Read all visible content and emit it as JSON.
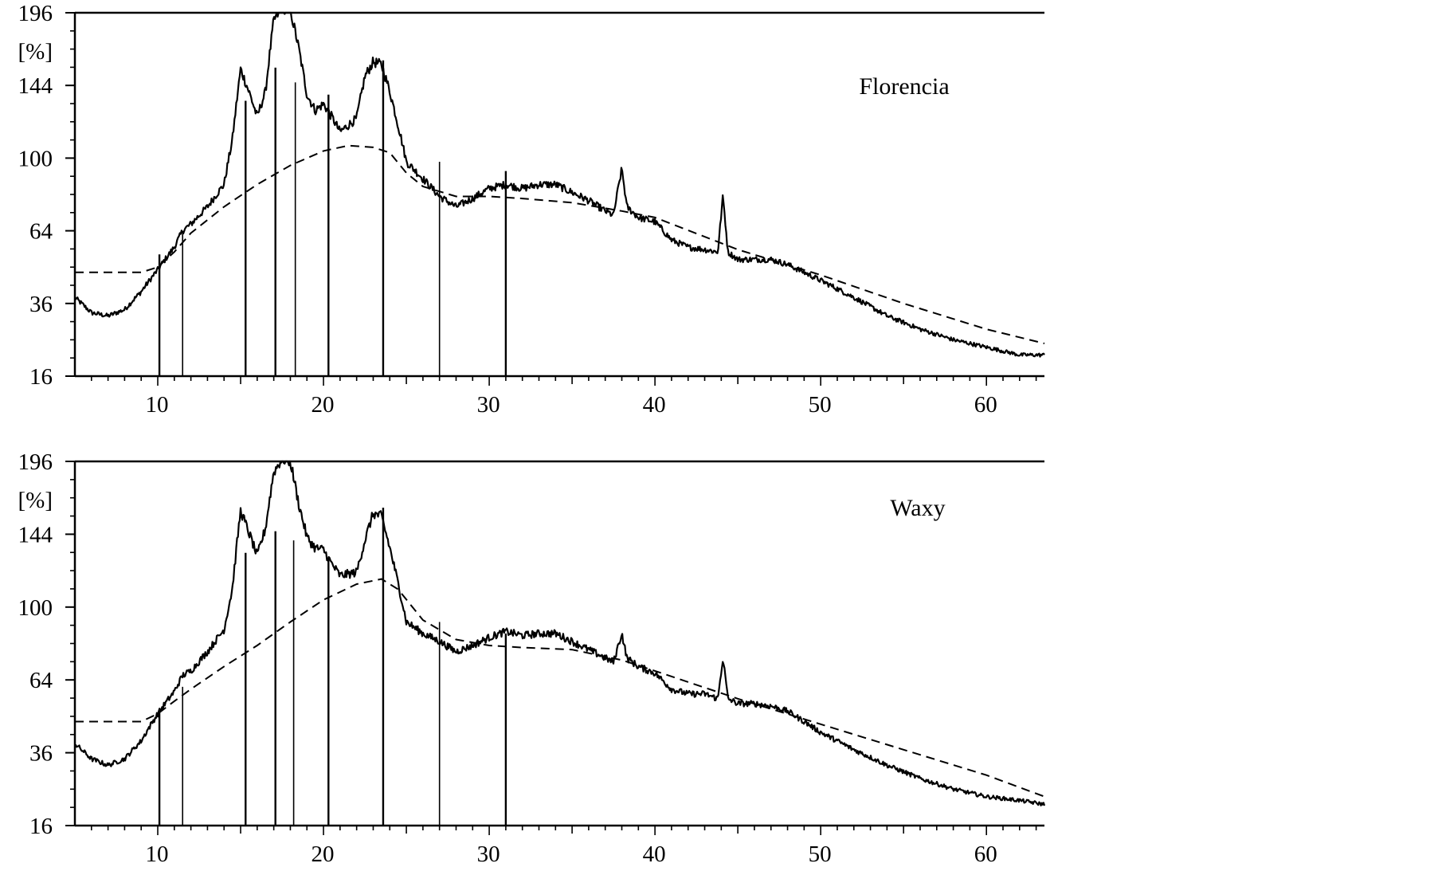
{
  "chart_data": [
    {
      "type": "line",
      "title": "Florencia",
      "ylabel": "[%]",
      "xlim": [
        5,
        63.5
      ],
      "ylim": [
        16,
        196
      ],
      "x_ticks": [
        10,
        20,
        30,
        40,
        50,
        60
      ],
      "y_ticks": [
        16,
        36,
        64,
        100,
        144,
        196
      ],
      "y_scale": "sqrt",
      "grid": false,
      "series": [
        {
          "line_style": "solid",
          "x": [
            5,
            6,
            7,
            8,
            9,
            10,
            11,
            11.5,
            12,
            13,
            14,
            14.5,
            15,
            15.5,
            16,
            16.5,
            17,
            17.5,
            18,
            18.5,
            19,
            19.5,
            20,
            20.5,
            21,
            22,
            22.5,
            23,
            23.5,
            24,
            25,
            26,
            27,
            28,
            29,
            30,
            31,
            32,
            33,
            34,
            35,
            36,
            37,
            37.5,
            38,
            38.3,
            39,
            40,
            41,
            42,
            43,
            43.8,
            44.1,
            44.4,
            45,
            46,
            47,
            48,
            49,
            50,
            52,
            54,
            56,
            58,
            60,
            62,
            63.5
          ],
          "y": [
            38,
            33,
            32,
            34,
            40,
            48,
            57,
            64,
            67,
            75,
            86,
            110,
            155,
            140,
            124,
            140,
            190,
            200,
            198,
            170,
            138,
            128,
            132,
            124,
            115,
            123,
            150,
            160,
            158,
            140,
            98,
            89,
            80,
            75,
            79,
            84,
            86,
            84,
            86,
            86,
            82,
            78,
            73,
            71,
            94,
            75,
            70,
            68,
            60,
            57,
            56,
            55,
            80,
            55,
            52,
            52,
            52,
            50,
            47,
            44,
            38,
            32,
            28,
            25,
            23,
            21,
            21
          ]
        },
        {
          "line_style": "dashed",
          "x": [
            5,
            7,
            9,
            10,
            11,
            12,
            14,
            16,
            18,
            20,
            21.5,
            23,
            24,
            25,
            26,
            28,
            30,
            32,
            35,
            38,
            40,
            45,
            50,
            55,
            60,
            63.5
          ],
          "y": [
            47,
            47,
            47,
            49,
            55,
            63,
            75,
            86,
            96,
            104,
            107,
            106,
            103,
            92,
            85,
            80,
            80,
            79,
            77,
            73,
            70,
            56,
            46,
            36,
            28,
            24
          ]
        }
      ],
      "stick_x": [
        10.1,
        11.5,
        15.3,
        17.1,
        18.3,
        20.3,
        23.6,
        27.0,
        31.0
      ],
      "stick_y": [
        54,
        64,
        134,
        156,
        146,
        138,
        161,
        98,
        93
      ]
    },
    {
      "type": "line",
      "title": "Waxy",
      "ylabel": "[%]",
      "xlim": [
        5,
        63.5
      ],
      "ylim": [
        16,
        196
      ],
      "x_ticks": [
        10,
        20,
        30,
        40,
        50,
        60
      ],
      "y_ticks": [
        16,
        36,
        64,
        100,
        144,
        196
      ],
      "y_scale": "sqrt",
      "grid": false,
      "series": [
        {
          "line_style": "solid",
          "x": [
            5,
            6,
            7,
            8,
            9,
            10,
            11,
            11.5,
            12,
            13,
            14,
            14.5,
            15,
            15.5,
            16,
            16.5,
            17,
            17.5,
            18,
            18.5,
            19,
            19.5,
            20,
            20.5,
            21,
            22,
            22.5,
            23,
            23.5,
            24,
            25,
            26,
            27,
            28,
            29,
            30,
            31,
            32,
            33,
            34,
            35,
            36,
            37,
            37.5,
            38,
            38.3,
            39,
            40,
            41,
            42,
            43,
            43.8,
            44.1,
            44.4,
            45,
            46,
            47,
            48,
            49,
            50,
            52,
            54,
            56,
            58,
            60,
            62,
            63.5
          ],
          "y": [
            39,
            34,
            32,
            34,
            40,
            50,
            59,
            66,
            68,
            77,
            88,
            110,
            160,
            145,
            130,
            148,
            188,
            198,
            196,
            165,
            142,
            135,
            134,
            125,
            118,
            120,
            140,
            158,
            156,
            135,
            92,
            86,
            82,
            77,
            80,
            84,
            87,
            85,
            86,
            86,
            82,
            78,
            74,
            72,
            86,
            74,
            70,
            67,
            60,
            58,
            58,
            56,
            74,
            56,
            54,
            54,
            53,
            51,
            47,
            43,
            37,
            32,
            28,
            25,
            23,
            22,
            21
          ]
        },
        {
          "line_style": "dashed",
          "x": [
            5,
            7,
            9,
            10,
            11,
            12,
            14,
            16,
            18,
            20,
            22,
            23.5,
            24.5,
            26,
            28,
            30,
            32,
            35,
            38,
            40,
            45,
            50,
            55,
            60,
            63.5
          ],
          "y": [
            47,
            47,
            47,
            50,
            55,
            60,
            70,
            80,
            92,
            104,
            113,
            116,
            110,
            93,
            83,
            80,
            79,
            78,
            73,
            68,
            56,
            46,
            37,
            29,
            23
          ]
        }
      ],
      "stick_x": [
        10.1,
        11.5,
        15.3,
        17.1,
        18.2,
        20.3,
        23.6,
        27.0,
        31.0
      ],
      "stick_y": [
        51,
        61,
        132,
        146,
        140,
        128,
        162,
        92,
        86
      ]
    }
  ]
}
